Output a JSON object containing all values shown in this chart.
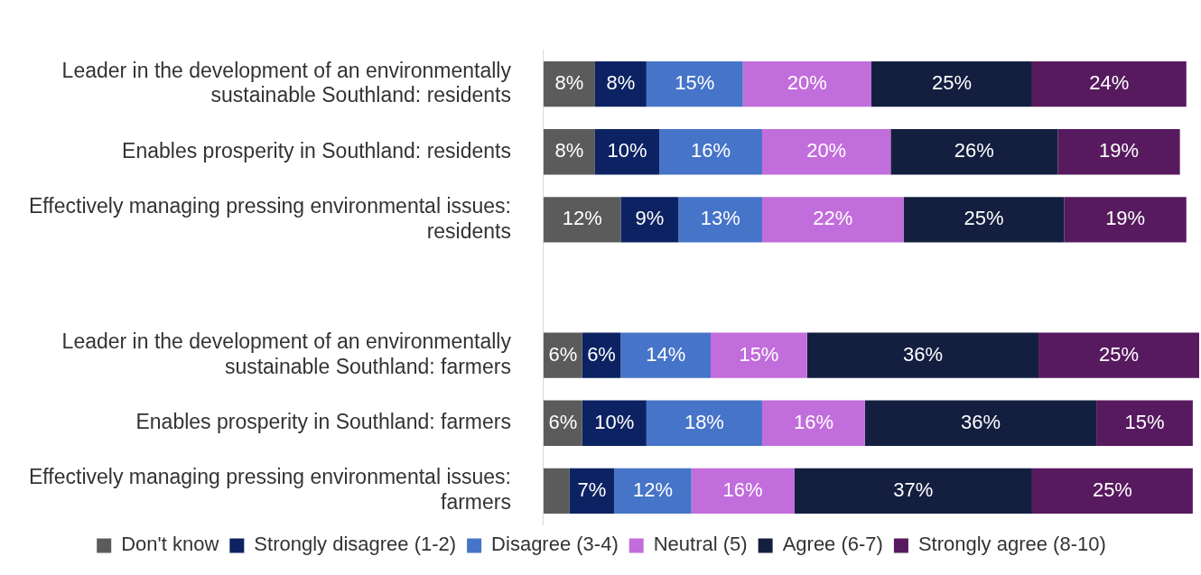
{
  "chart_data": {
    "type": "bar",
    "orientation": "horizontal",
    "stacked": true,
    "legend": "bottom",
    "categories": [
      "Leader in the development of an environmentally sustainable Southland: residents",
      "Enables prosperity in Southland: residents",
      "Effectively managing pressing environmental issues: residents",
      null,
      "Leader in the development of an environmentally sustainable Southland: farmers",
      "Enables prosperity in Southland: farmers",
      "Effectively managing pressing environmental issues: farmers"
    ],
    "series": [
      {
        "name": "Don't know",
        "color": "#5b5b5b",
        "values": [
          8,
          8,
          12,
          null,
          6,
          6,
          4
        ],
        "value_labels": [
          "8%",
          "8%",
          "12%",
          null,
          "6%",
          "6%",
          null
        ]
      },
      {
        "name": "Strongly disagree (1-2)",
        "color": "#0c2262",
        "values": [
          8,
          10,
          9,
          null,
          6,
          10,
          7
        ],
        "value_labels": [
          "8%",
          "10%",
          "9%",
          null,
          "6%",
          "10%",
          "7%"
        ]
      },
      {
        "name": "Disagree (3-4)",
        "color": "#4674c8",
        "values": [
          15,
          16,
          13,
          null,
          14,
          18,
          12
        ],
        "value_labels": [
          "15%",
          "16%",
          "13%",
          null,
          "14%",
          "18%",
          "12%"
        ]
      },
      {
        "name": "Neutral (5)",
        "color": "#c26ddc",
        "values": [
          20,
          20,
          22,
          null,
          15,
          16,
          16
        ],
        "value_labels": [
          "20%",
          "20%",
          "22%",
          null,
          "15%",
          "16%",
          "16%"
        ]
      },
      {
        "name": "Agree (6-7)",
        "color": "#141f40",
        "values": [
          25,
          26,
          25,
          null,
          36,
          36,
          37
        ],
        "value_labels": [
          "25%",
          "26%",
          "25%",
          null,
          "36%",
          "36%",
          "37%"
        ]
      },
      {
        "name": "Strongly agree (8-10)",
        "color": "#571a5f",
        "values": [
          24,
          19,
          19,
          null,
          25,
          15,
          25
        ],
        "value_labels": [
          "24%",
          "19%",
          "19%",
          null,
          "25%",
          "15%",
          "25%"
        ]
      }
    ]
  }
}
